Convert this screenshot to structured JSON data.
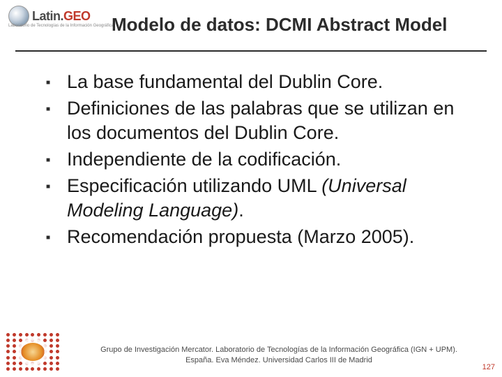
{
  "logo": {
    "brand_left": "Latin.",
    "brand_right": "GEO",
    "subtitle": "Laboratorio de Tecnologías de la Información Geográfica"
  },
  "title": "Modelo de datos: DCMI Abstract Model",
  "bullets": [
    {
      "text": "La base fundamental del Dublin Core."
    },
    {
      "text": "Definiciones de las palabras que se utilizan en los documentos del Dublin Core."
    },
    {
      "text": "Independiente de la codificación."
    },
    {
      "text_before": "Especificación utilizando UML ",
      "text_italic": "(Universal Modeling Language)",
      "text_after": "."
    },
    {
      "text": "Recomendación propuesta (Marzo 2005)."
    }
  ],
  "footer": {
    "line1": "Grupo de Investigación Mercator. Laboratorio de Tecnologías de la Información Geográfica (IGN + UPM).",
    "line2": "España.  Eva Méndez. Universidad Carlos III de Madrid"
  },
  "page_number": "127",
  "colors": {
    "accent": "#c0392b",
    "text": "#1a1a1a",
    "title_text": "#2c2c2c"
  }
}
